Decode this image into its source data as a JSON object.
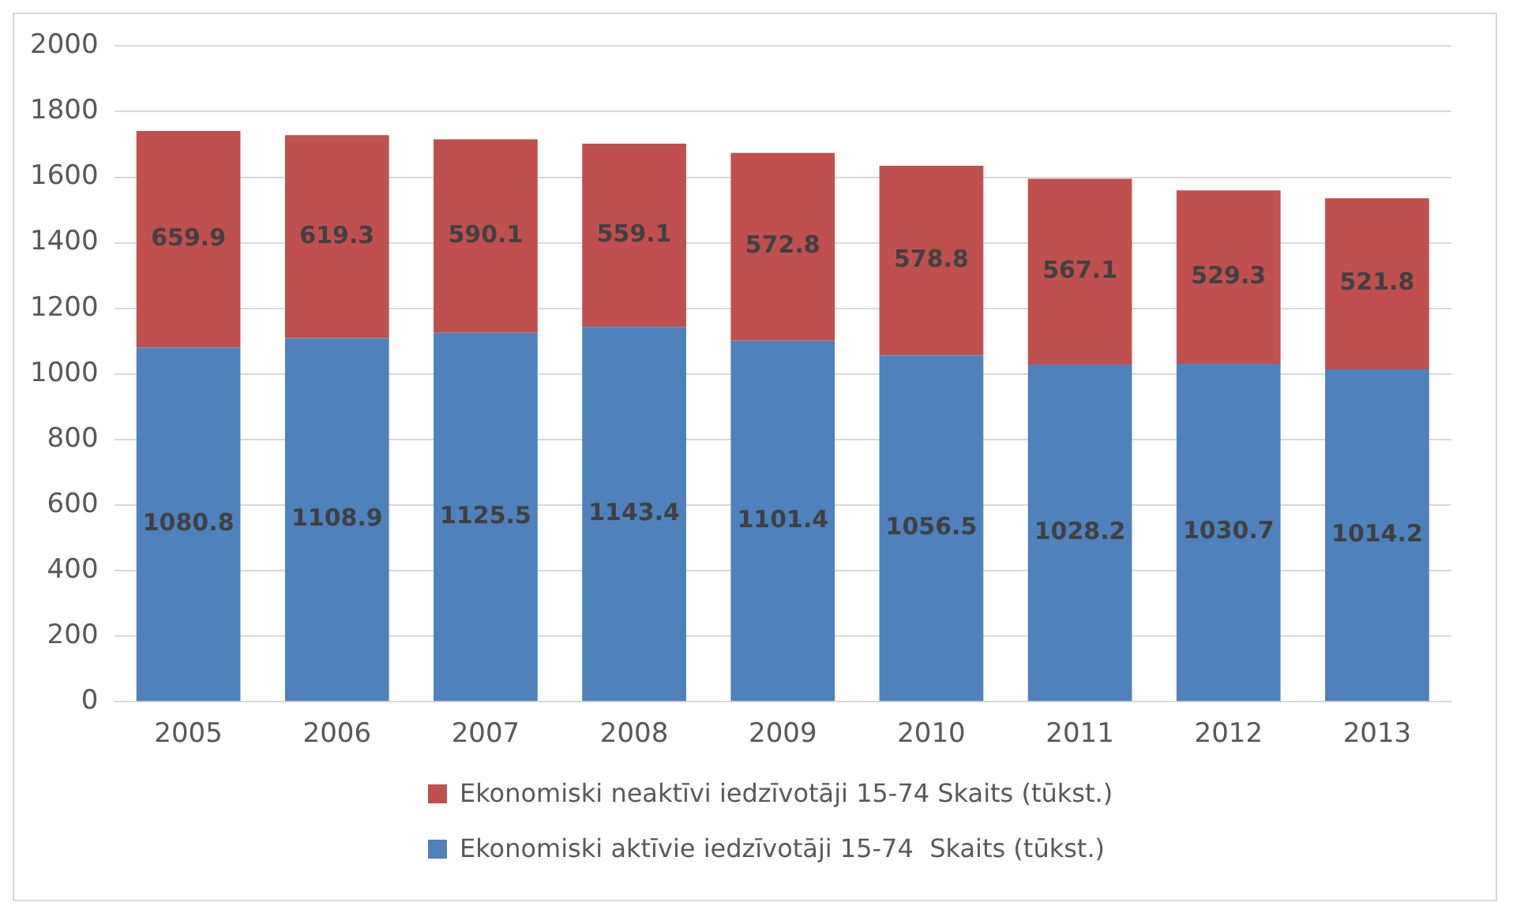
{
  "chart_data": {
    "type": "bar",
    "stacked": true,
    "categories": [
      "2005",
      "2006",
      "2007",
      "2008",
      "2009",
      "2010",
      "2011",
      "2012",
      "2013"
    ],
    "series": [
      {
        "name": "Ekonomiski aktīvie iedzīvotāji 15-74  Skaits (tūkst.)",
        "color": "#4f81bd",
        "values": [
          1080.8,
          1108.9,
          1125.5,
          1143.4,
          1101.4,
          1056.5,
          1028.2,
          1030.7,
          1014.2
        ]
      },
      {
        "name": "Ekonomiski neaktīvi iedzīvotāji 15-74 Skaits (tūkst.)",
        "color": "#c0504d",
        "values": [
          659.9,
          619.3,
          590.1,
          559.1,
          572.8,
          578.8,
          567.1,
          529.3,
          521.8
        ]
      }
    ],
    "ylim": [
      0,
      2000
    ],
    "yticks": [
      0,
      200,
      400,
      600,
      800,
      1000,
      1200,
      1400,
      1600,
      1800,
      2000
    ],
    "grid": "y",
    "legend": "bottom",
    "data_labels": true
  }
}
